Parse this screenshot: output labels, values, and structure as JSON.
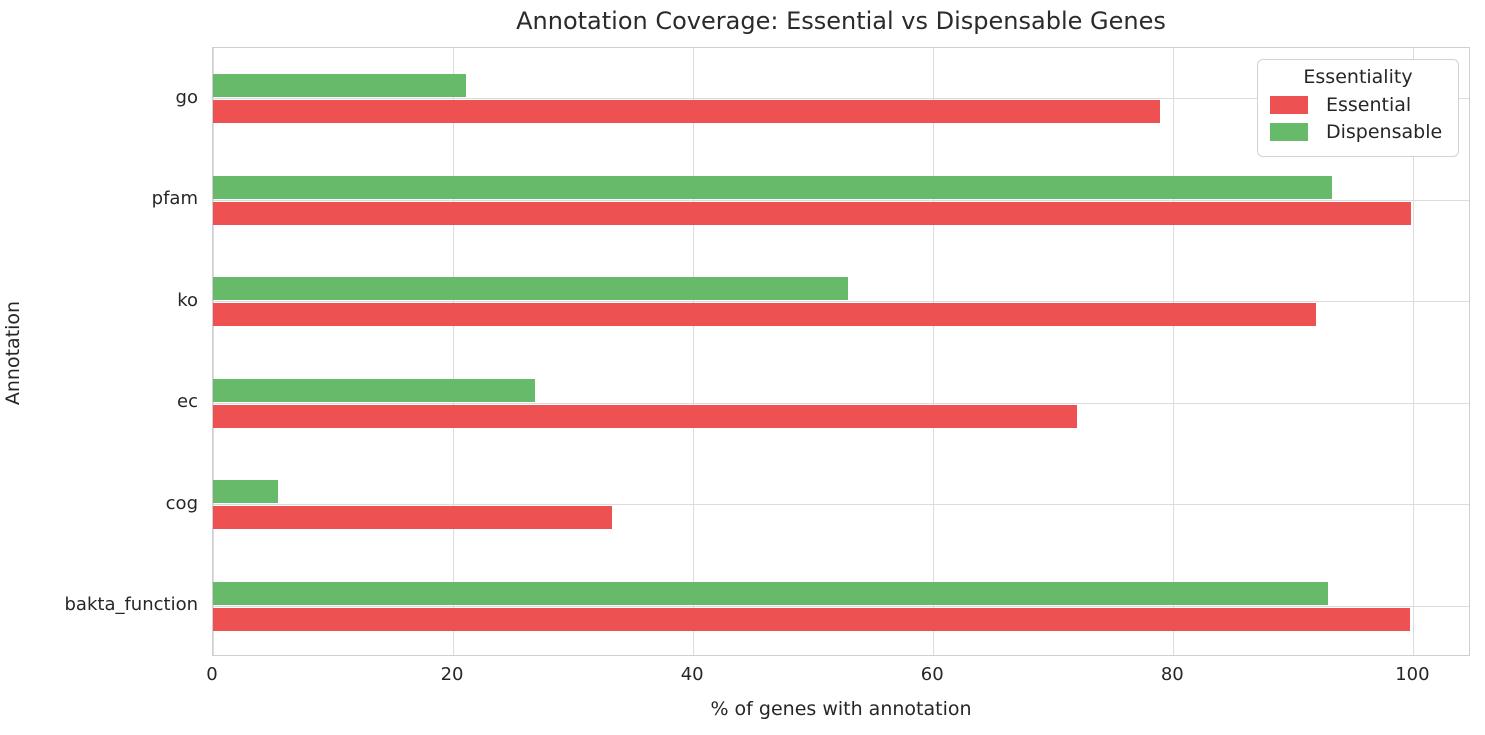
{
  "title": "Annotation Coverage: Essential vs Dispensable Genes",
  "chart_data": {
    "type": "bar",
    "orientation": "horizontal",
    "title": "Annotation Coverage: Essential vs Dispensable Genes",
    "xlabel": "% of genes with annotation",
    "ylabel": "Annotation",
    "categories": [
      "go",
      "pfam",
      "ko",
      "ec",
      "cog",
      "bakta_function"
    ],
    "series": [
      {
        "name": "Essential",
        "color": "#ed5151",
        "values": [
          78.9,
          99.8,
          91.9,
          72.0,
          33.2,
          99.7
        ]
      },
      {
        "name": "Dispensable",
        "color": "#68ba6b",
        "values": [
          21.1,
          93.2,
          52.9,
          26.8,
          5.4,
          92.9
        ]
      }
    ],
    "xlim": [
      0,
      104.8
    ],
    "xticks": [
      0,
      20,
      40,
      60,
      80,
      100
    ],
    "grid": true,
    "legend": {
      "title": "Essentiality",
      "position": "upper right",
      "entries": [
        "Essential",
        "Dispensable"
      ]
    }
  }
}
